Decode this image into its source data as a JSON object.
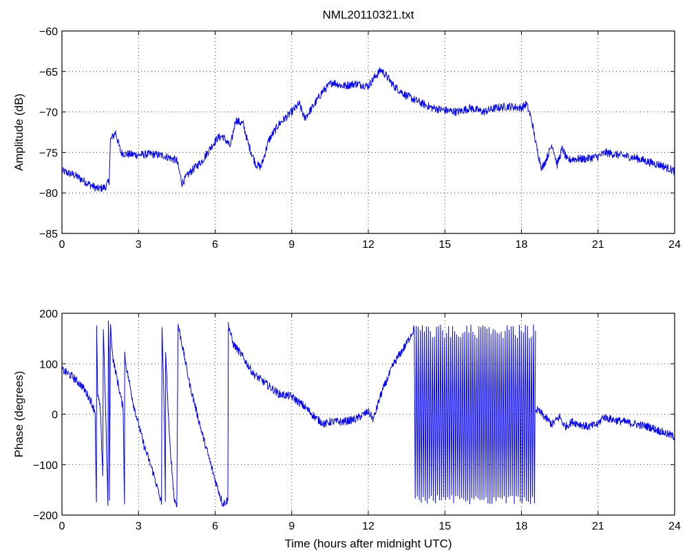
{
  "chart_data": [
    {
      "type": "line",
      "title": "NML20110321.txt",
      "xlabel": "",
      "ylabel": "Amplitude (dB)",
      "xlim": [
        0,
        24
      ],
      "ylim": [
        -85,
        -60
      ],
      "xticks": [
        "0",
        "3",
        "6",
        "9",
        "12",
        "15",
        "18",
        "21",
        "24"
      ],
      "yticks": [
        "-85",
        "-80",
        "-75",
        "-70",
        "-65",
        "-60"
      ],
      "grid": true,
      "color": "#0000ff",
      "noise": 0.5,
      "series": [
        {
          "x": [
            0,
            0.5,
            1.0,
            1.4,
            1.7,
            1.85,
            1.9,
            2.1,
            2.3,
            2.5,
            3.0,
            3.5,
            4.0,
            4.5,
            4.7,
            5.0,
            5.5,
            5.8,
            6.1,
            6.3,
            6.6,
            6.8,
            7.1,
            7.3,
            7.6,
            7.8,
            8.1,
            8.5,
            9.0,
            9.3,
            9.5,
            9.8,
            10.2,
            10.6,
            11.0,
            11.5,
            12.0,
            12.3,
            12.5,
            12.7,
            13.0,
            13.5,
            14.0,
            14.5,
            15.0,
            15.5,
            16.0,
            16.5,
            17.0,
            17.5,
            18.0,
            18.2,
            18.4,
            18.6,
            18.8,
            18.95,
            19.2,
            19.4,
            19.6,
            19.8,
            20.0,
            20.5,
            21.0,
            21.3,
            21.6,
            22.0,
            22.5,
            23.0,
            23.5,
            24.0
          ],
          "y": [
            -77.3,
            -77.8,
            -78.8,
            -79.5,
            -79.3,
            -78.5,
            -73.5,
            -72.5,
            -75.0,
            -75.2,
            -75.3,
            -75.2,
            -75.4,
            -76.0,
            -78.8,
            -77.5,
            -76.0,
            -74.5,
            -73.2,
            -73.0,
            -74.3,
            -71.0,
            -71.5,
            -74.0,
            -76.5,
            -76.8,
            -73.5,
            -71.5,
            -70.0,
            -69.0,
            -70.8,
            -69.5,
            -67.5,
            -66.3,
            -66.8,
            -66.5,
            -66.8,
            -65.5,
            -64.8,
            -65.5,
            -66.8,
            -68.0,
            -68.8,
            -69.5,
            -69.8,
            -70.0,
            -69.5,
            -70.0,
            -69.5,
            -69.3,
            -69.5,
            -69.0,
            -71.0,
            -74.5,
            -77.0,
            -76.0,
            -74.0,
            -76.5,
            -74.5,
            -76.0,
            -75.8,
            -75.8,
            -75.5,
            -75.0,
            -75.2,
            -75.4,
            -75.7,
            -76.2,
            -76.6,
            -77.3
          ]
        }
      ]
    },
    {
      "type": "line",
      "title": "",
      "xlabel": "Time (hours after midnight UTC)",
      "ylabel": "Phase (degrees)",
      "xlim": [
        0,
        24
      ],
      "ylim": [
        -200,
        200
      ],
      "xticks": [
        "0",
        "3",
        "6",
        "9",
        "12",
        "15",
        "18",
        "21",
        "24"
      ],
      "yticks": [
        "-200",
        "-100",
        "0",
        "100",
        "200"
      ],
      "grid": true,
      "color": "#0000ff",
      "noise": 8,
      "series": [
        {
          "x": [
            0,
            0.4,
            0.8,
            1.1,
            1.3,
            1.35,
            1.36,
            1.4,
            1.5,
            1.6,
            1.62,
            1.7,
            1.8,
            1.82,
            1.85,
            1.86,
            1.9,
            2.0,
            2.2,
            2.4,
            2.45,
            2.46,
            2.5,
            2.8,
            3.2,
            3.6,
            3.9,
            3.92,
            4.0,
            4.05,
            4.06,
            4.2,
            4.4,
            4.5,
            4.55,
            4.56,
            4.7,
            5.0,
            5.5,
            6.0,
            6.3,
            6.5,
            6.52,
            6.7,
            7.0,
            7.5,
            8.0,
            8.5,
            9.0,
            9.5,
            10.0,
            10.3,
            10.5,
            11.0,
            11.5,
            12.0,
            12.2,
            12.5,
            13.0,
            13.5,
            13.8
          ],
          "y": [
            88,
            75,
            55,
            30,
            5,
            -178,
            170,
            40,
            10,
            -120,
            170,
            30,
            -178,
            178,
            120,
            -178,
            175,
            110,
            60,
            10,
            -178,
            120,
            100,
            20,
            -60,
            -120,
            -178,
            178,
            20,
            -178,
            130,
            -40,
            -170,
            -178,
            178,
            175,
            140,
            60,
            -40,
            -130,
            -178,
            -170,
            178,
            140,
            120,
            80,
            60,
            40,
            35,
            15,
            -10,
            -20,
            -15,
            -15,
            -10,
            5,
            -10,
            40,
            100,
            140,
            170
          ]
        },
        {
          "x": [
            13.8,
            14.2,
            14.6,
            15.0,
            15.4,
            15.8,
            16.2,
            16.6,
            17.0,
            17.4,
            17.8,
            18.2,
            18.55
          ],
          "y": [
            170,
            175,
            170,
            172,
            175,
            178,
            176,
            170,
            175,
            178,
            172,
            170,
            168
          ],
          "name": ""
        },
        {
          "x": [
            18.55,
            18.7,
            19.0,
            19.2,
            19.5,
            19.7,
            20.0,
            20.3,
            20.6,
            21.0,
            21.2,
            21.5,
            22.0,
            22.5,
            23.0,
            23.5,
            24.0
          ],
          "y": [
            10,
            5,
            -10,
            -20,
            -5,
            -25,
            -15,
            -20,
            -25,
            -20,
            -5,
            -10,
            -15,
            -20,
            -25,
            -35,
            -45
          ]
        }
      ]
    }
  ]
}
